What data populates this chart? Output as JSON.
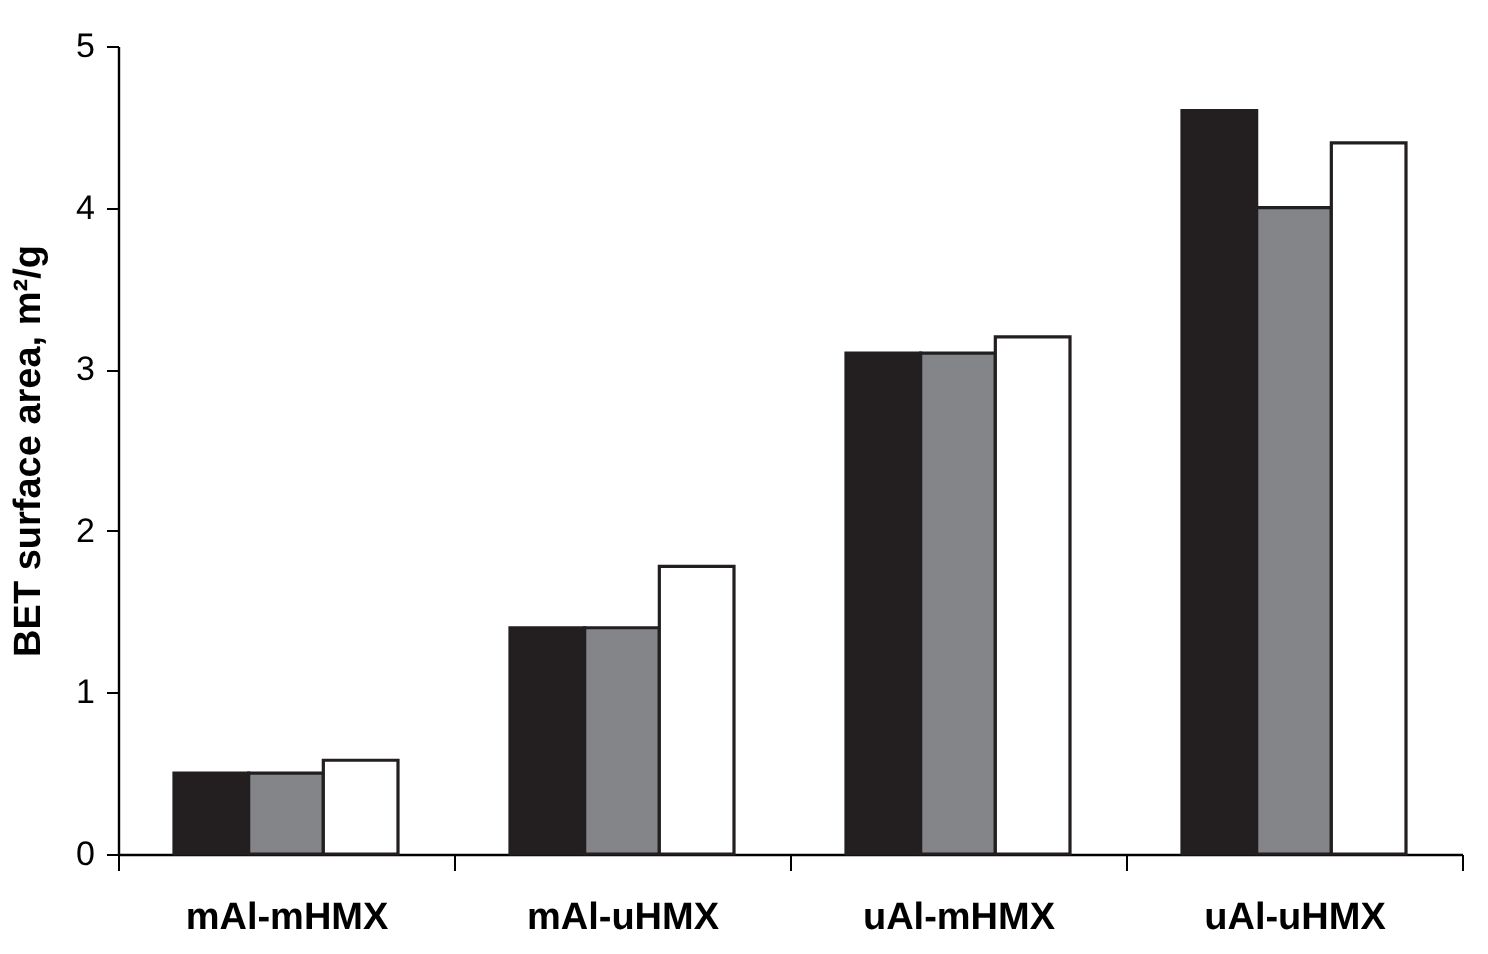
{
  "chart_data": {
    "type": "bar",
    "ylabel": "BET surface area, m²/g",
    "categories": [
      "mAl-mHMX",
      "mAl-uHMX",
      "uAl-mHMX",
      "uAl-uHMX"
    ],
    "series": [
      {
        "color": "#231f20",
        "values": [
          0.5,
          1.4,
          3.1,
          4.6
        ]
      },
      {
        "color": "#848589",
        "values": [
          0.5,
          1.4,
          3.1,
          4.0
        ]
      },
      {
        "color": "#ffffff",
        "values": [
          0.58,
          1.78,
          3.2,
          4.4
        ]
      }
    ],
    "ylim": [
      0,
      5
    ],
    "yticks": [
      0,
      1,
      2,
      3,
      4,
      5
    ],
    "grid": false,
    "legend": false
  }
}
